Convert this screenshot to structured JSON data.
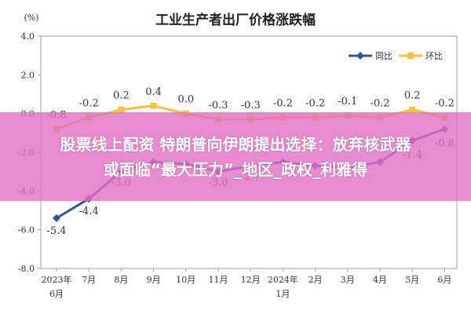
{
  "overlay": {
    "line1": "股票线上配资 特朗普向伊朗提出选择：放弃核武器",
    "line2": "或面临“最大压力”_地区_政权_利雅得"
  },
  "colors": {
    "yoy": "#2f54a6",
    "mom": "#f5c231",
    "plot_border": "#9aa0a8",
    "grid": "#d9d9d9",
    "overlay": "#e26ec4"
  },
  "chart_data": {
    "type": "line",
    "title": "工业生产者出厂价格涨跌幅",
    "ylabel": "(%)",
    "xlabel": "",
    "ylim": [
      -8.0,
      4.0
    ],
    "yticks": [
      "4.0",
      "2.0",
      "0.0",
      "-2.0",
      "-4.0",
      "-6.0",
      "-8.0"
    ],
    "categories": [
      [
        "2023年",
        "6月"
      ],
      [
        "7月"
      ],
      [
        "8月"
      ],
      [
        "9月"
      ],
      [
        "10月"
      ],
      [
        "11月"
      ],
      [
        "12月"
      ],
      [
        "2024年",
        "1月"
      ],
      [
        "2月"
      ],
      [
        "3月"
      ],
      [
        "4月"
      ],
      [
        "5月"
      ],
      [
        "6月"
      ]
    ],
    "legend_position": "top-right",
    "grid": false,
    "series": [
      {
        "name": "同比",
        "values": [
          -5.4,
          -4.4,
          -3.0,
          -2.5,
          -2.6,
          -3.0,
          -2.7,
          -2.5,
          -2.7,
          -2.8,
          -2.5,
          -1.4,
          -0.8
        ],
        "labels": [
          "-5.4",
          "-4.4",
          "-3.0",
          "",
          "",
          "-3.0",
          "-2.7",
          "",
          "",
          "",
          "",
          "-1.4",
          "-0.8"
        ]
      },
      {
        "name": "环比",
        "values": [
          -0.8,
          -0.2,
          0.2,
          0.4,
          0.0,
          -0.3,
          -0.3,
          -0.2,
          -0.2,
          -0.1,
          -0.2,
          0.2,
          -0.2
        ],
        "labels": [
          "-0.8",
          "-0.2",
          "0.2",
          "0.4",
          "0.0",
          "-0.3",
          "-0.3",
          "-0.2",
          "-0.2",
          "-0.1",
          "-0.2",
          "0.2",
          "-0.2"
        ]
      }
    ]
  }
}
